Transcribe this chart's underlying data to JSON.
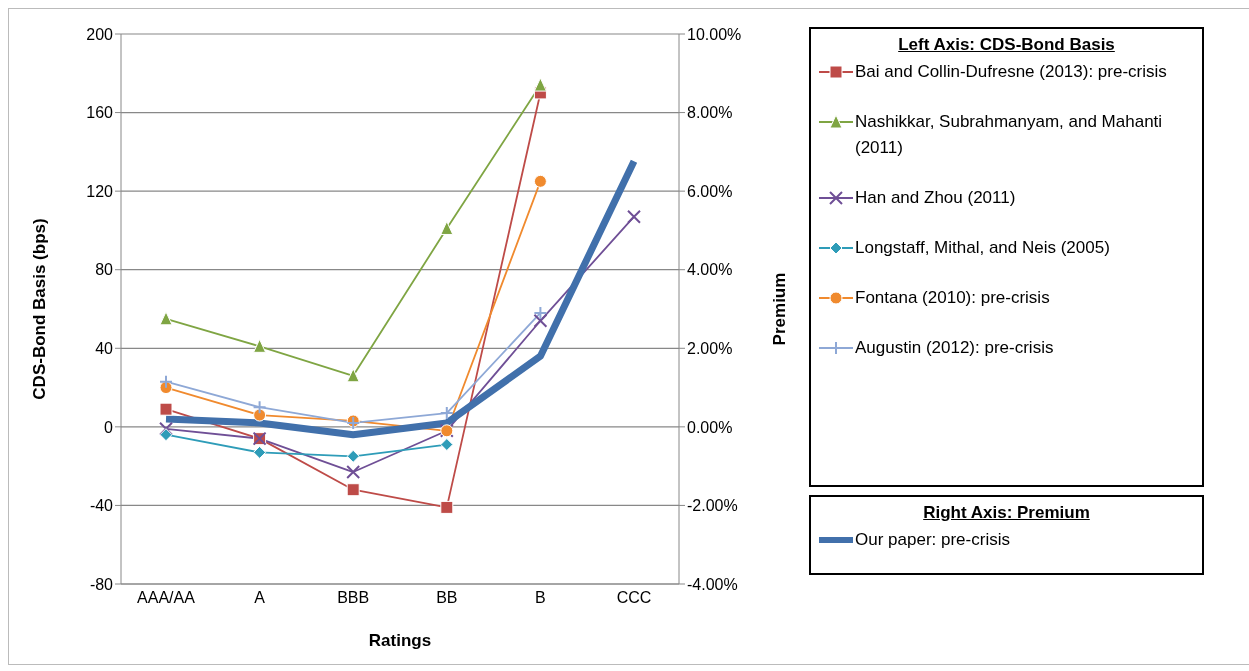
{
  "chart_data": {
    "type": "line",
    "xlabel": "Ratings",
    "ylabel": "CDS-Bond Basis (bps)",
    "y2label": "Premium",
    "legend_title": [
      "Left Axis: CDS-Bond Basis",
      "Right Axis: Premium"
    ],
    "categories": [
      "AAA/AA",
      "A",
      "BBB",
      "BB",
      "B",
      "CCC"
    ],
    "series": [
      {
        "name": "Bai and Collin-Dufresne (2013): pre-crisis",
        "color": "#be4b48",
        "marker": "square",
        "values": [
          9,
          -6,
          -32,
          -41,
          170,
          null
        ]
      },
      {
        "name": "Nashikkar, Subrahmanyam, and Mahanti (2011)",
        "color": "#7fa543",
        "marker": "triangle",
        "values": [
          55,
          41,
          26,
          101,
          174,
          null
        ]
      },
      {
        "name": "Han and Zhou (2011)",
        "color": "#6f4f96",
        "marker": "cross",
        "values": [
          -1,
          -6,
          -23,
          -2,
          54,
          107
        ]
      },
      {
        "name": "Longstaff, Mithal, and Neis (2005)",
        "color": "#2e9cb8",
        "marker": "diamond",
        "values": [
          -4,
          -13,
          -15,
          -9,
          null,
          null
        ]
      },
      {
        "name": "Fontana (2010): pre-crisis",
        "color": "#f08a2e",
        "marker": "circle",
        "values": [
          20,
          6,
          3,
          -2,
          125,
          null
        ]
      },
      {
        "name": "Augustin (2012): pre-crisis",
        "color": "#8ea8d6",
        "marker": "plus",
        "values": [
          23,
          10,
          2,
          7,
          58,
          null
        ]
      },
      {
        "name": "Our paper: pre-crisis",
        "color": "#4170ab",
        "marker": "none",
        "axis": "y2",
        "values": [
          0.2,
          0.1,
          -0.2,
          0.1,
          1.8,
          6.76
        ]
      }
    ],
    "ylim": [
      -80,
      200
    ],
    "yticks": [
      -80,
      -40,
      0,
      40,
      80,
      120,
      160,
      200
    ],
    "y2lim": [
      -4,
      10
    ],
    "y2ticks": [
      {
        "value": -4,
        "label": "-4.00%"
      },
      {
        "value": -2,
        "label": "-2.00%"
      },
      {
        "value": 0,
        "label": "0.00%"
      },
      {
        "value": 2,
        "label": "2.00%"
      },
      {
        "value": 4,
        "label": "4.00%"
      },
      {
        "value": 6,
        "label": "6.00%"
      },
      {
        "value": 8,
        "label": "8.00%"
      },
      {
        "value": 10,
        "label": "10.00%"
      }
    ],
    "grid": "y",
    "legend": "right"
  }
}
